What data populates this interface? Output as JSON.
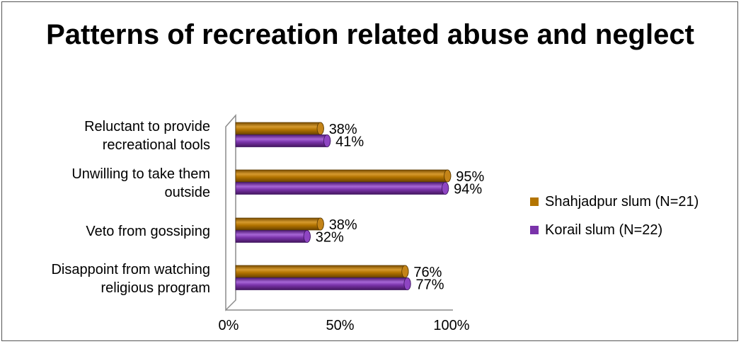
{
  "chart_data": {
    "type": "bar",
    "orientation": "horizontal",
    "title": "Patterns of recreation related abuse and neglect",
    "categories": [
      [
        "Reluctant to provide",
        "recreational tools"
      ],
      [
        "Unwilling to take them",
        "outside"
      ],
      [
        "Veto from gossiping"
      ],
      [
        "Disappoint from watching",
        "religious program"
      ]
    ],
    "series": [
      {
        "name": "Shahjadpur slum (N=21)",
        "color": "#b37400",
        "values": [
          38,
          95,
          38,
          76
        ],
        "labels": [
          "38%",
          "95%",
          "38%",
          "76%"
        ]
      },
      {
        "name": "Korail slum  (N=22)",
        "color": "#7a33aa",
        "values": [
          41,
          94,
          32,
          77
        ],
        "labels": [
          "41%",
          "94%",
          "32%",
          "77%"
        ]
      }
    ],
    "xlim": [
      0,
      100
    ],
    "x_ticks": [
      "0%",
      "50%",
      "100%"
    ],
    "x_tick_values": [
      0,
      50,
      100
    ],
    "legend_position": "right",
    "grid": false
  }
}
